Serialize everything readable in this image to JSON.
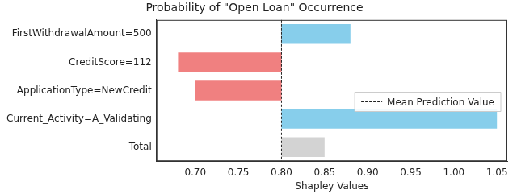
{
  "chart_data": {
    "type": "bar",
    "orientation": "horizontal",
    "title": "Probability of \"Open Loan\" Occurrence",
    "x_label": "Shapley Values",
    "categories": [
      "FirstWithdrawalAmount=500",
      "CreditScore=112",
      "ApplicationType=NewCredit",
      "Current_Activity=A_Validating",
      "Total"
    ],
    "values": [
      0.88,
      0.68,
      0.7,
      1.05,
      0.85
    ],
    "colors": [
      "#87ceeb",
      "#f08080",
      "#f08080",
      "#87ceeb",
      "#d3d3d3"
    ],
    "reference_line": {
      "value": 0.8,
      "label": "Mean Prediction Value",
      "line_style": "dashed"
    },
    "xlim": [
      0.655,
      1.062
    ],
    "xticks": [
      {
        "value": 0.7,
        "label": "0.70"
      },
      {
        "value": 0.75,
        "label": "0.75"
      },
      {
        "value": 0.8,
        "label": "0.80"
      },
      {
        "value": 0.85,
        "label": "0.85"
      },
      {
        "value": 0.9,
        "label": "0.90"
      },
      {
        "value": 0.95,
        "label": "0.95"
      },
      {
        "value": 1.0,
        "label": "1.00"
      },
      {
        "value": 1.05,
        "label": "1.05"
      }
    ],
    "grid": false,
    "legend": "center right"
  }
}
